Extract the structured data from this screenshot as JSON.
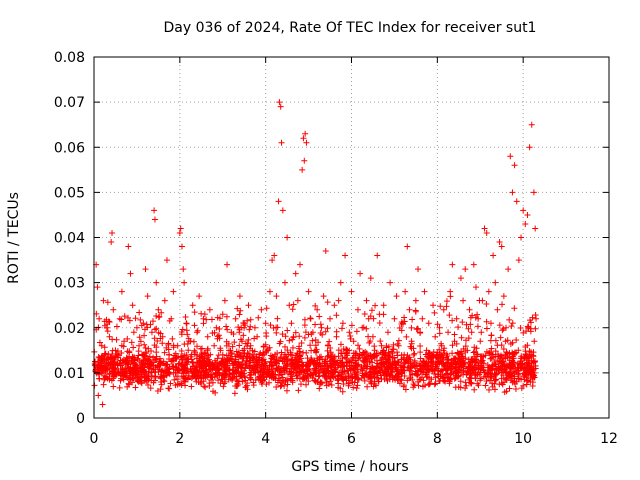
{
  "chart_data": {
    "type": "scatter",
    "title": "Day 036 of 2024, Rate Of TEC Index for receiver sut1",
    "xlabel": "GPS time / hours",
    "ylabel": "ROTI / TECUs",
    "xlim": [
      0,
      12
    ],
    "ylim": [
      0,
      0.08
    ],
    "xticks": [
      0,
      2,
      4,
      6,
      8,
      10,
      12
    ],
    "xtick_labels": [
      "0",
      "2",
      "4",
      "6",
      "8",
      "10",
      "12"
    ],
    "yticks": [
      0,
      0.01,
      0.02,
      0.03,
      0.04,
      0.05,
      0.06,
      0.07,
      0.08
    ],
    "ytick_labels": [
      "0",
      "0.01",
      "0.02",
      "0.03",
      "0.04",
      "0.05",
      "0.06",
      "0.07",
      "0.08"
    ],
    "grid": true,
    "marker": "+",
    "color": "#ff0000",
    "series": [
      {
        "name": "ROTI",
        "x": [
          0.02,
          0.05,
          0.08,
          0.1,
          0.12,
          0.15,
          0.18,
          0.2,
          0.22,
          0.25,
          0.28,
          0.3,
          0.33,
          0.36,
          0.4,
          0.42,
          0.45,
          0.48,
          0.5,
          0.55,
          0.6,
          0.65,
          0.7,
          0.75,
          0.8,
          0.85,
          0.9,
          0.95,
          1.0,
          1.05,
          1.1,
          1.15,
          1.2,
          1.25,
          1.3,
          1.35,
          1.4,
          1.42,
          1.45,
          1.5,
          1.55,
          1.6,
          1.65,
          1.7,
          1.75,
          1.8,
          1.85,
          1.9,
          1.95,
          2.0,
          2.02,
          2.05,
          2.08,
          2.1,
          2.15,
          2.2,
          2.25,
          2.3,
          2.35,
          2.4,
          2.45,
          2.5,
          2.55,
          2.6,
          2.65,
          2.7,
          2.75,
          2.8,
          2.85,
          2.9,
          2.95,
          3.0,
          3.05,
          3.1,
          3.15,
          3.2,
          3.25,
          3.3,
          3.35,
          3.4,
          3.45,
          3.5,
          3.55,
          3.6,
          3.65,
          3.7,
          3.75,
          3.8,
          3.85,
          3.9,
          3.95,
          4.0,
          4.05,
          4.1,
          4.15,
          4.2,
          4.25,
          4.3,
          4.32,
          4.35,
          4.37,
          4.4,
          4.45,
          4.5,
          4.55,
          4.6,
          4.65,
          4.7,
          4.75,
          4.8,
          4.85,
          4.88,
          4.9,
          4.92,
          4.95,
          5.0,
          5.05,
          5.1,
          5.15,
          5.2,
          5.25,
          5.3,
          5.35,
          5.4,
          5.45,
          5.5,
          5.55,
          5.6,
          5.65,
          5.7,
          5.75,
          5.8,
          5.85,
          5.9,
          5.95,
          6.0,
          6.05,
          6.1,
          6.15,
          6.2,
          6.25,
          6.3,
          6.35,
          6.4,
          6.45,
          6.5,
          6.55,
          6.6,
          6.65,
          6.7,
          6.75,
          6.8,
          6.85,
          6.9,
          6.95,
          7.0,
          7.05,
          7.1,
          7.15,
          7.2,
          7.25,
          7.3,
          7.35,
          7.4,
          7.45,
          7.5,
          7.55,
          7.6,
          7.65,
          7.7,
          7.75,
          7.8,
          7.85,
          7.9,
          7.95,
          8.0,
          8.05,
          8.1,
          8.15,
          8.2,
          8.25,
          8.3,
          8.35,
          8.4,
          8.45,
          8.5,
          8.55,
          8.6,
          8.65,
          8.7,
          8.75,
          8.8,
          8.85,
          8.9,
          8.95,
          9.0,
          9.05,
          9.1,
          9.15,
          9.2,
          9.25,
          9.3,
          9.35,
          9.4,
          9.45,
          9.5,
          9.55,
          9.6,
          9.65,
          9.7,
          9.75,
          9.8,
          9.85,
          9.9,
          9.95,
          10.0,
          10.05,
          10.1,
          10.15,
          10.2,
          10.25,
          10.28,
          10.3
        ],
        "y": [
          0.012,
          0.034,
          0.029,
          0.005,
          0.022,
          0.011,
          0.016,
          0.003,
          0.026,
          0.014,
          0.009,
          0.02,
          0.013,
          0.018,
          0.039,
          0.041,
          0.024,
          0.01,
          0.015,
          0.012,
          0.022,
          0.028,
          0.017,
          0.009,
          0.038,
          0.032,
          0.025,
          0.013,
          0.02,
          0.016,
          0.008,
          0.021,
          0.033,
          0.027,
          0.011,
          0.019,
          0.046,
          0.044,
          0.03,
          0.024,
          0.012,
          0.018,
          0.026,
          0.035,
          0.014,
          0.022,
          0.028,
          0.01,
          0.016,
          0.041,
          0.042,
          0.038,
          0.033,
          0.03,
          0.021,
          0.013,
          0.017,
          0.025,
          0.011,
          0.019,
          0.027,
          0.014,
          0.022,
          0.009,
          0.018,
          0.024,
          0.012,
          0.016,
          0.02,
          0.011,
          0.015,
          0.023,
          0.026,
          0.034,
          0.013,
          0.019,
          0.01,
          0.022,
          0.014,
          0.027,
          0.017,
          0.021,
          0.012,
          0.025,
          0.016,
          0.011,
          0.02,
          0.018,
          0.013,
          0.024,
          0.009,
          0.021,
          0.015,
          0.028,
          0.035,
          0.036,
          0.027,
          0.048,
          0.07,
          0.069,
          0.061,
          0.046,
          0.03,
          0.04,
          0.025,
          0.021,
          0.018,
          0.032,
          0.026,
          0.034,
          0.055,
          0.062,
          0.057,
          0.063,
          0.061,
          0.028,
          0.022,
          0.019,
          0.015,
          0.024,
          0.012,
          0.02,
          0.027,
          0.037,
          0.016,
          0.022,
          0.013,
          0.025,
          0.018,
          0.026,
          0.03,
          0.021,
          0.036,
          0.015,
          0.019,
          0.028,
          0.017,
          0.012,
          0.024,
          0.032,
          0.02,
          0.014,
          0.026,
          0.022,
          0.031,
          0.018,
          0.011,
          0.036,
          0.023,
          0.016,
          0.025,
          0.013,
          0.019,
          0.03,
          0.012,
          0.022,
          0.027,
          0.016,
          0.01,
          0.021,
          0.028,
          0.038,
          0.024,
          0.017,
          0.014,
          0.026,
          0.033,
          0.019,
          0.022,
          0.028,
          0.015,
          0.021,
          0.013,
          0.025,
          0.018,
          0.011,
          0.02,
          0.016,
          0.024,
          0.012,
          0.019,
          0.028,
          0.034,
          0.017,
          0.022,
          0.014,
          0.031,
          0.026,
          0.033,
          0.015,
          0.024,
          0.019,
          0.034,
          0.029,
          0.022,
          0.017,
          0.026,
          0.042,
          0.041,
          0.028,
          0.021,
          0.036,
          0.03,
          0.024,
          0.039,
          0.038,
          0.027,
          0.02,
          0.033,
          0.058,
          0.05,
          0.056,
          0.048,
          0.035,
          0.04,
          0.046,
          0.043,
          0.045,
          0.06,
          0.065,
          0.05,
          0.042,
          0.022
        ],
        "comment_band": "Dense cloud of additional points between 0.005 and 0.02 TECU/s covering 0–10.3 h"
      }
    ],
    "dense_band": {
      "x_range": [
        0,
        10.3
      ],
      "y_range": [
        0.003,
        0.022
      ],
      "y_center": 0.011,
      "count": 2600
    }
  }
}
